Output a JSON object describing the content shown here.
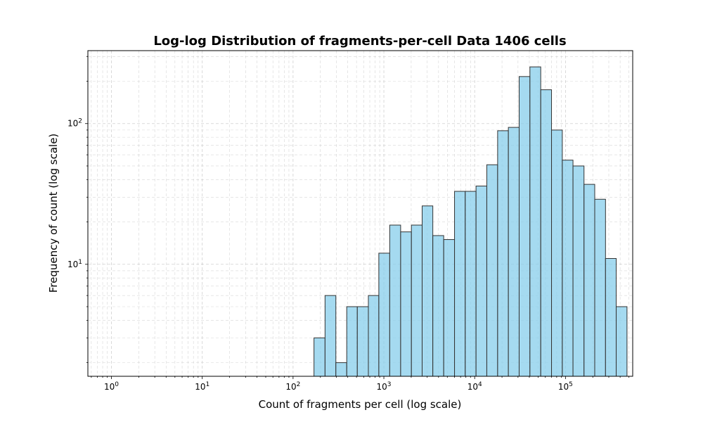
{
  "chart_data": {
    "type": "bar",
    "title": "Log-log Distribution of fragments-per-cell Data 1406 cells",
    "xlabel": "Count of fragments per cell (log scale)",
    "ylabel": "Frequency of count (log scale)",
    "x_scale": "log",
    "y_scale": "log",
    "xlim": [
      0.55,
      550000
    ],
    "ylim": [
      1.6,
      330
    ],
    "grid": true,
    "bar_color": "#87ceeb",
    "bar_edge_color": "#333333",
    "x_major_ticks": [
      1,
      10,
      100,
      1000,
      10000,
      100000
    ],
    "x_tick_labels": [
      {
        "base": "10",
        "exp": "0"
      },
      {
        "base": "10",
        "exp": "1"
      },
      {
        "base": "10",
        "exp": "2"
      },
      {
        "base": "10",
        "exp": "3"
      },
      {
        "base": "10",
        "exp": "4"
      },
      {
        "base": "10",
        "exp": "5"
      }
    ],
    "y_major_ticks": [
      10,
      100
    ],
    "y_tick_labels": [
      {
        "base": "10",
        "exp": "1"
      },
      {
        "base": "10",
        "exp": "2"
      }
    ],
    "bins": [
      {
        "x0": 170,
        "x1": 225,
        "count": 3
      },
      {
        "x0": 225,
        "x1": 296,
        "count": 6
      },
      {
        "x0": 296,
        "x1": 390,
        "count": 2
      },
      {
        "x0": 390,
        "x1": 510,
        "count": 5
      },
      {
        "x0": 510,
        "x1": 675,
        "count": 5
      },
      {
        "x0": 675,
        "x1": 880,
        "count": 6
      },
      {
        "x0": 880,
        "x1": 1160,
        "count": 12
      },
      {
        "x0": 1160,
        "x1": 1530,
        "count": 19
      },
      {
        "x0": 1530,
        "x1": 2010,
        "count": 17
      },
      {
        "x0": 2010,
        "x1": 2640,
        "count": 19
      },
      {
        "x0": 2640,
        "x1": 3460,
        "count": 26
      },
      {
        "x0": 3460,
        "x1": 4560,
        "count": 16
      },
      {
        "x0": 4560,
        "x1": 6000,
        "count": 15
      },
      {
        "x0": 6000,
        "x1": 7870,
        "count": 33
      },
      {
        "x0": 7870,
        "x1": 10350,
        "count": 33
      },
      {
        "x0": 10350,
        "x1": 13600,
        "count": 36
      },
      {
        "x0": 13600,
        "x1": 17900,
        "count": 51
      },
      {
        "x0": 17900,
        "x1": 23500,
        "count": 89
      },
      {
        "x0": 23500,
        "x1": 30900,
        "count": 94
      },
      {
        "x0": 30900,
        "x1": 40600,
        "count": 216
      },
      {
        "x0": 40600,
        "x1": 53400,
        "count": 253
      },
      {
        "x0": 53400,
        "x1": 70200,
        "count": 174
      },
      {
        "x0": 70200,
        "x1": 92300,
        "count": 90
      },
      {
        "x0": 92300,
        "x1": 121000,
        "count": 55
      },
      {
        "x0": 121000,
        "x1": 160000,
        "count": 50
      },
      {
        "x0": 160000,
        "x1": 210000,
        "count": 37
      },
      {
        "x0": 210000,
        "x1": 276000,
        "count": 29
      },
      {
        "x0": 276000,
        "x1": 362000,
        "count": 11
      },
      {
        "x0": 362000,
        "x1": 476000,
        "count": 5
      }
    ]
  }
}
